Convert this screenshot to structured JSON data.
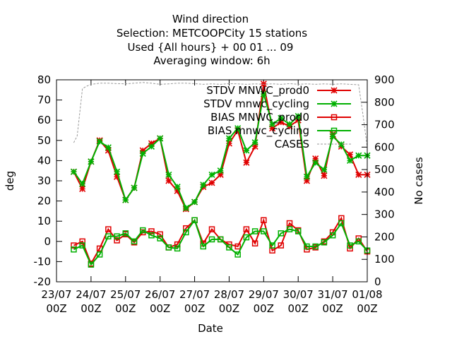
{
  "chart_data": {
    "type": "line",
    "title_lines": [
      "Wind direction",
      "Selection: METCOOPCity     15 stations",
      "Used {All hours} + 00 01 ... 09",
      "Averaging window:  6h"
    ],
    "xlabel": "Date",
    "ylabel": "deg",
    "y2label": "No cases",
    "ylim": [
      -20,
      80
    ],
    "y2lim": [
      0,
      900
    ],
    "yticks": [
      -20,
      -10,
      0,
      10,
      20,
      30,
      40,
      50,
      60,
      70,
      80
    ],
    "y2ticks": [
      0,
      100,
      200,
      300,
      400,
      500,
      600,
      700,
      800,
      900
    ],
    "xlim": [
      0,
      9
    ],
    "xticks": [
      {
        "pos": 0,
        "line1": "23/07",
        "line2": "00Z"
      },
      {
        "pos": 1,
        "line1": "24/07",
        "line2": "00Z"
      },
      {
        "pos": 2,
        "line1": "25/07",
        "line2": "00Z"
      },
      {
        "pos": 3,
        "line1": "26/07",
        "line2": "00Z"
      },
      {
        "pos": 4,
        "line1": "27/07",
        "line2": "00Z"
      },
      {
        "pos": 5,
        "line1": "28/07",
        "line2": "00Z"
      },
      {
        "pos": 6,
        "line1": "29/07",
        "line2": "00Z"
      },
      {
        "pos": 7,
        "line1": "30/07",
        "line2": "00Z"
      },
      {
        "pos": 8,
        "line1": "31/07",
        "line2": "00Z"
      },
      {
        "pos": 9,
        "line1": "01/08",
        "line2": "00Z"
      }
    ],
    "legend_position": "top-right",
    "x": [
      0.5,
      0.75,
      1.0,
      1.25,
      1.5,
      1.75,
      2.0,
      2.25,
      2.5,
      2.75,
      3.0,
      3.25,
      3.5,
      3.75,
      4.0,
      4.25,
      4.5,
      4.75,
      5.0,
      5.25,
      5.5,
      5.75,
      6.0,
      6.25,
      6.5,
      6.75,
      7.0,
      7.25,
      7.5,
      7.75,
      8.0,
      8.25,
      8.5,
      8.75,
      9.0
    ],
    "series": [
      {
        "name": "STDV MNWC_prod0",
        "color": "#e00000",
        "marker": "star",
        "axis": "y",
        "values": [
          34.5,
          26,
          39.5,
          50,
          45,
          32,
          20.5,
          26.5,
          45,
          48.5,
          51,
          30,
          25,
          16,
          19.5,
          27,
          29,
          33,
          48.5,
          55,
          39,
          47,
          78,
          56,
          59,
          57,
          60,
          30,
          41,
          32.5,
          53,
          47,
          43,
          33,
          33
        ]
      },
      {
        "name": "STDV mnwc_cycling",
        "color": "#00b000",
        "marker": "star",
        "axis": "y",
        "values": [
          34.5,
          28.5,
          39.5,
          49.5,
          46.5,
          34.5,
          20.5,
          26.5,
          43.5,
          47,
          51,
          33,
          27,
          16.5,
          19.5,
          28,
          33,
          35,
          51,
          56,
          45,
          49,
          73,
          58,
          61,
          58,
          62,
          32,
          39,
          35.5,
          52,
          48,
          40,
          42.5,
          42.5
        ]
      },
      {
        "name": "BIAS MNWC_prod0",
        "color": "#e00000",
        "marker": "square",
        "axis": "y",
        "values": [
          -2,
          0,
          -11,
          -3.5,
          6,
          0.5,
          3.5,
          -0.5,
          4.5,
          5,
          3.5,
          -3,
          -1.5,
          6.5,
          10.5,
          -1,
          6,
          1,
          -1.5,
          -2.5,
          6,
          -1,
          10.5,
          -4.5,
          -2,
          9,
          5.5,
          -4,
          -3,
          0,
          4.5,
          11.5,
          -3.5,
          1.5,
          -5
        ]
      },
      {
        "name": "BIAS mnwc_cycling",
        "color": "#00b000",
        "marker": "square",
        "axis": "y",
        "values": [
          -4,
          -2,
          -11.5,
          -6.5,
          2.5,
          2.5,
          4,
          0,
          5.5,
          3,
          1.5,
          -3,
          -3.5,
          4.5,
          10.5,
          -2.5,
          1,
          1,
          -3,
          -6.5,
          2,
          5,
          5,
          -2,
          4,
          6,
          5,
          -2.5,
          -2.5,
          -0.5,
          3,
          9,
          -2,
          0,
          -4.5
        ]
      },
      {
        "name": "CASES",
        "color": "#999999",
        "marker": "none",
        "dash": true,
        "axis": "y2",
        "x": [
          0.5,
          0.6,
          0.75,
          0.85,
          1.0,
          1.25,
          1.5,
          1.75,
          2.0,
          2.25,
          2.5,
          2.75,
          3.0,
          3.25,
          3.5,
          3.75,
          4.0,
          4.25,
          4.5,
          4.75,
          5.0,
          5.25,
          5.5,
          5.75,
          6.0,
          6.25,
          6.5,
          6.75,
          7.0,
          7.25,
          7.5,
          7.75,
          8.0,
          8.25,
          8.5,
          8.75,
          8.88,
          9.0
        ],
        "values": [
          620,
          650,
          860,
          870,
          880,
          885,
          885,
          883,
          882,
          885,
          888,
          885,
          880,
          882,
          885,
          885,
          883,
          880,
          882,
          880,
          883,
          882,
          880,
          882,
          880,
          882,
          880,
          883,
          880,
          882,
          880,
          882,
          880,
          882,
          880,
          878,
          740,
          600
        ]
      }
    ]
  }
}
